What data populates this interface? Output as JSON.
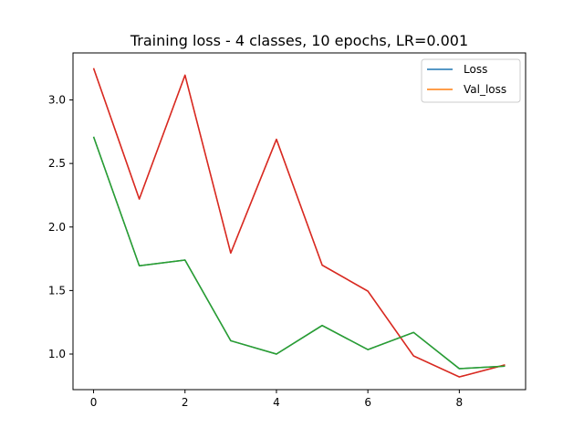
{
  "chart_data": {
    "type": "line",
    "title": "Training loss - 4 classes, 10 epochs, LR=0.001",
    "xlabel": "",
    "ylabel": "",
    "x": [
      0,
      1,
      2,
      3,
      4,
      5,
      6,
      7,
      8,
      9
    ],
    "xlim": [
      -0.45,
      9.45
    ],
    "ylim": [
      0.72,
      3.37
    ],
    "x_ticks": [
      0,
      2,
      4,
      6,
      8
    ],
    "y_ticks": [
      1.0,
      1.5,
      2.0,
      2.5,
      3.0
    ],
    "grid": false,
    "legend": {
      "position": "top-right",
      "entries": [
        "Loss",
        "Val_loss"
      ]
    },
    "series": [
      {
        "name": "Loss",
        "color": "#1f77b4",
        "values": [
          2.71,
          1.695,
          1.74,
          1.105,
          1.0,
          1.225,
          1.035,
          1.17,
          0.885,
          0.905
        ]
      },
      {
        "name": "Val_loss",
        "color": "#ff7f0e",
        "values": [
          3.25,
          2.22,
          3.195,
          1.795,
          2.69,
          1.7,
          1.495,
          0.985,
          0.82,
          0.915
        ]
      },
      {
        "color": "#d62728",
        "values": [
          3.25,
          2.22,
          3.195,
          1.795,
          2.69,
          1.7,
          1.495,
          0.985,
          0.82,
          0.915
        ]
      },
      {
        "color": "#2ca02c",
        "values": [
          2.71,
          1.695,
          1.74,
          1.105,
          1.0,
          1.225,
          1.035,
          1.17,
          0.885,
          0.905
        ]
      }
    ]
  }
}
